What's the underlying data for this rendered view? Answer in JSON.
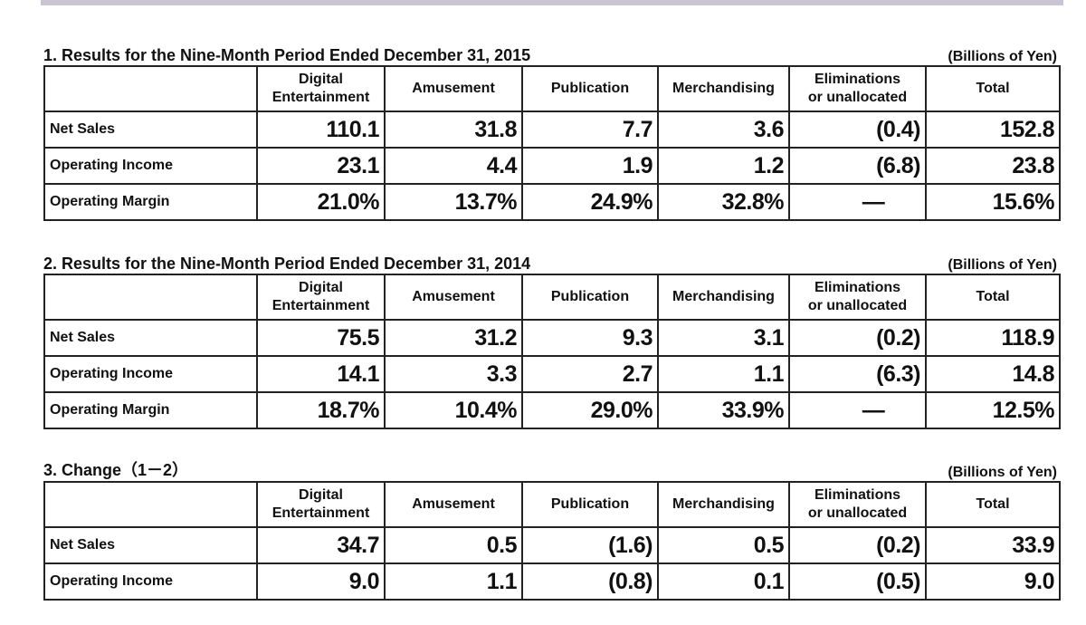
{
  "headers": {
    "digital": "Digital",
    "entertainment": "Entertainment",
    "amusement": "Amusement",
    "publication": "Publication",
    "merchandising": "Merchandising",
    "elim1": "Eliminations",
    "elim2": "or unallocated",
    "total": "Total"
  },
  "unit": "(Billions of Yen)",
  "sections": [
    {
      "title": "1. Results for the Nine-Month Period Ended December 31, 2015",
      "rows": [
        {
          "label": "Net Sales",
          "values": [
            "110.1",
            "31.8",
            "7.7",
            "3.6",
            "(0.4)",
            "152.8"
          ]
        },
        {
          "label": "Operating Income",
          "values": [
            "23.1",
            "4.4",
            "1.9",
            "1.2",
            "(6.8)",
            "23.8"
          ]
        },
        {
          "label": "Operating Margin",
          "values": [
            "21.0%",
            "13.7%",
            "24.9%",
            "32.8%",
            "—",
            "15.6%"
          ]
        }
      ]
    },
    {
      "title": "2. Results for the Nine-Month Period Ended December 31, 2014",
      "rows": [
        {
          "label": "Net Sales",
          "values": [
            "75.5",
            "31.2",
            "9.3",
            "3.1",
            "(0.2)",
            "118.9"
          ]
        },
        {
          "label": "Operating Income",
          "values": [
            "14.1",
            "3.3",
            "2.7",
            "1.1",
            "(6.3)",
            "14.8"
          ]
        },
        {
          "label": "Operating Margin",
          "values": [
            "18.7%",
            "10.4%",
            "29.0%",
            "33.9%",
            "—",
            "12.5%"
          ]
        }
      ]
    },
    {
      "title": "3. Change（1－2）",
      "rows": [
        {
          "label": "Net Sales",
          "values": [
            "34.7",
            "0.5",
            "(1.6)",
            "0.5",
            "(0.2)",
            "33.9"
          ]
        },
        {
          "label": "Operating Income",
          "values": [
            "9.0",
            "1.1",
            "(0.8)",
            "0.1",
            "(0.5)",
            "9.0"
          ]
        }
      ]
    }
  ]
}
